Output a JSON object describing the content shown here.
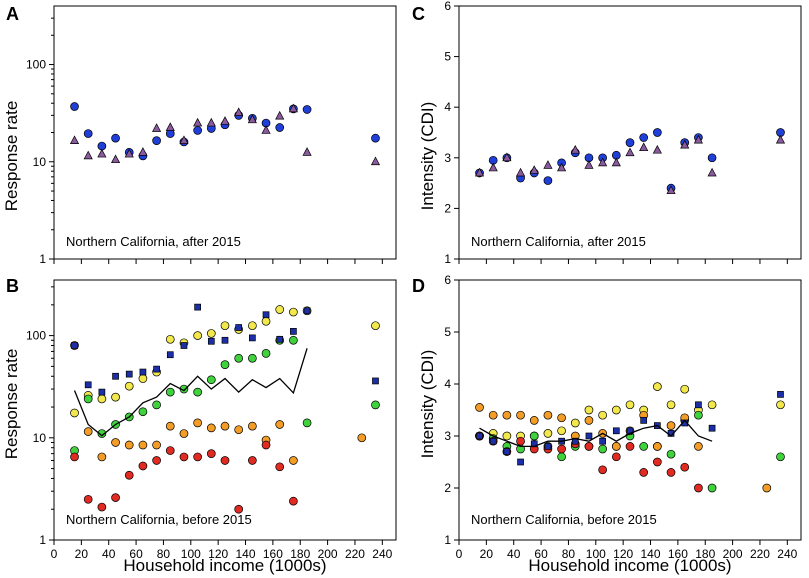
{
  "figure": {
    "x_axis_label": "Household income (1000s)"
  },
  "chart_data": [
    {
      "id": "A",
      "type": "scatter",
      "panel_label": "A",
      "annotation": "Northern California, after 2015",
      "ylabel": "Response rate",
      "yscale": "log",
      "ylim": [
        1,
        400
      ],
      "xlim": [
        0,
        250
      ],
      "xticks": [
        0,
        20,
        40,
        60,
        80,
        100,
        120,
        140,
        160,
        180,
        200,
        220,
        240
      ],
      "show_xtick_labels": false,
      "yticks": [
        1,
        10,
        100
      ],
      "ytick_labels": [
        "1",
        "10",
        "100"
      ],
      "series": [
        {
          "name": "circles",
          "marker": "circle",
          "color": "#1f3fd8",
          "x": [
            15,
            25,
            35,
            45,
            55,
            65,
            75,
            85,
            95,
            105,
            115,
            125,
            135,
            145,
            155,
            165,
            175,
            185,
            235
          ],
          "y": [
            37,
            19.5,
            14.5,
            17.5,
            12.5,
            11.5,
            16.5,
            19.5,
            16,
            21,
            22,
            24,
            30,
            28,
            25,
            22.5,
            35,
            34.5,
            17.5
          ]
        },
        {
          "name": "triangles",
          "marker": "triangle",
          "color": "#8b5a9e",
          "x": [
            15,
            25,
            35,
            45,
            55,
            65,
            75,
            85,
            95,
            105,
            115,
            125,
            135,
            145,
            155,
            165,
            175,
            185,
            235
          ],
          "y": [
            16.5,
            11.5,
            12,
            10.5,
            12,
            12.5,
            22,
            22.5,
            16.5,
            25,
            25,
            26,
            32,
            27,
            21,
            29.5,
            35,
            12.5,
            10
          ]
        }
      ]
    },
    {
      "id": "C",
      "type": "scatter",
      "panel_label": "C",
      "annotation": "Northern California, after 2015",
      "ylabel": "Intensity (CDI)",
      "yscale": "linear",
      "ylim": [
        1,
        6
      ],
      "xlim": [
        0,
        250
      ],
      "xticks": [
        0,
        20,
        40,
        60,
        80,
        100,
        120,
        140,
        160,
        180,
        200,
        220,
        240
      ],
      "show_xtick_labels": false,
      "yticks": [
        1,
        2,
        3,
        4,
        5,
        6
      ],
      "ytick_labels": [
        "1",
        "2",
        "3",
        "4",
        "5",
        "6"
      ],
      "series": [
        {
          "name": "circles",
          "marker": "circle",
          "color": "#1f3fd8",
          "x": [
            15,
            25,
            35,
            45,
            55,
            65,
            75,
            85,
            95,
            105,
            115,
            125,
            135,
            145,
            155,
            165,
            175,
            185,
            235
          ],
          "y": [
            2.7,
            2.95,
            3.0,
            2.6,
            2.7,
            2.55,
            2.9,
            3.1,
            3.0,
            3.0,
            3.05,
            3.3,
            3.4,
            3.5,
            2.4,
            3.3,
            3.4,
            3.0,
            3.5
          ]
        },
        {
          "name": "triangles",
          "marker": "triangle",
          "color": "#8b5a9e",
          "x": [
            15,
            25,
            35,
            45,
            55,
            65,
            75,
            85,
            95,
            105,
            115,
            125,
            135,
            145,
            155,
            165,
            175,
            185,
            235
          ],
          "y": [
            2.7,
            2.8,
            3.0,
            2.7,
            2.75,
            2.85,
            2.8,
            3.15,
            2.85,
            2.9,
            2.9,
            3.1,
            3.2,
            3.15,
            2.35,
            3.25,
            3.35,
            2.7,
            3.35
          ]
        }
      ]
    },
    {
      "id": "B",
      "type": "scatter",
      "panel_label": "B",
      "annotation": "Northern California, before 2015",
      "ylabel": "Response rate",
      "yscale": "log",
      "ylim": [
        1,
        350
      ],
      "xlim": [
        0,
        250
      ],
      "xticks": [
        0,
        20,
        40,
        60,
        80,
        100,
        120,
        140,
        160,
        180,
        200,
        220,
        240
      ],
      "show_xtick_labels": true,
      "yticks": [
        1,
        10,
        100
      ],
      "ytick_labels": [
        "1",
        "10",
        "100"
      ],
      "series": [
        {
          "name": "yellow circles",
          "marker": "circle",
          "color": "#f2e84b",
          "x": [
            15,
            25,
            35,
            45,
            55,
            65,
            75,
            85,
            95,
            105,
            115,
            125,
            135,
            145,
            155,
            165,
            175,
            185,
            235
          ],
          "y": [
            17.5,
            26,
            24,
            25,
            32,
            38,
            44,
            92,
            85,
            100,
            105,
            125,
            115,
            125,
            138,
            180,
            170,
            175,
            125
          ]
        },
        {
          "name": "green circles",
          "marker": "circle",
          "color": "#3fd23c",
          "x": [
            15,
            25,
            35,
            45,
            55,
            65,
            75,
            85,
            95,
            105,
            115,
            125,
            135,
            145,
            155,
            165,
            175,
            185,
            235
          ],
          "y": [
            7.5,
            24,
            11,
            13.5,
            16,
            18,
            21,
            28,
            30,
            28,
            37,
            52,
            60,
            60,
            67,
            90,
            90,
            14,
            21
          ]
        },
        {
          "name": "orange circles",
          "marker": "circle",
          "color": "#f39c26",
          "x": [
            15,
            25,
            35,
            45,
            55,
            65,
            75,
            85,
            95,
            105,
            115,
            125,
            135,
            145,
            155,
            165,
            175,
            225
          ],
          "y": [
            80,
            11.5,
            6.5,
            9,
            8.5,
            8.5,
            8.5,
            13,
            11,
            14,
            12.5,
            13,
            12,
            13,
            9.5,
            13.5,
            6,
            10
          ]
        },
        {
          "name": "red circles",
          "marker": "circle",
          "color": "#e02a22",
          "x": [
            15,
            25,
            35,
            45,
            55,
            65,
            75,
            85,
            95,
            105,
            115,
            125,
            135,
            145,
            155,
            165,
            175
          ],
          "y": [
            6.5,
            2.5,
            2.1,
            2.6,
            4.3,
            5.3,
            6,
            7.5,
            6.5,
            6.5,
            7,
            6,
            2,
            6,
            8.5,
            5.2,
            2.4
          ]
        },
        {
          "name": "blue squares",
          "marker": "square",
          "color": "#1c2fa8",
          "x": [
            15,
            25,
            35,
            45,
            55,
            65,
            75,
            85,
            95,
            105,
            115,
            125,
            135,
            145,
            155,
            165,
            175,
            185,
            235
          ],
          "y": [
            80,
            33,
            28,
            40,
            42,
            44,
            47,
            65,
            80,
            190,
            88,
            90,
            120,
            95,
            160,
            92,
            110,
            175,
            36
          ]
        },
        {
          "name": "line",
          "marker": "line",
          "color": "#000000",
          "x": [
            15,
            25,
            35,
            45,
            55,
            65,
            75,
            85,
            95,
            105,
            115,
            125,
            135,
            145,
            155,
            165,
            175,
            185
          ],
          "y": [
            29,
            13.5,
            10.5,
            13.5,
            16,
            22,
            25,
            34,
            29,
            40,
            30,
            38,
            28,
            37,
            31,
            38,
            27.5,
            75
          ]
        }
      ]
    },
    {
      "id": "D",
      "type": "scatter",
      "panel_label": "D",
      "annotation": "Northern California, before 2015",
      "ylabel": "Intensity (CDI)",
      "yscale": "linear",
      "ylim": [
        1,
        6
      ],
      "xlim": [
        0,
        250
      ],
      "xticks": [
        0,
        20,
        40,
        60,
        80,
        100,
        120,
        140,
        160,
        180,
        200,
        220,
        240
      ],
      "show_xtick_labels": true,
      "yticks": [
        1,
        2,
        3,
        4,
        5,
        6
      ],
      "ytick_labels": [
        "1",
        "2",
        "3",
        "4",
        "5",
        "6"
      ],
      "series": [
        {
          "name": "yellow circles",
          "marker": "circle",
          "color": "#f2e84b",
          "x": [
            15,
            25,
            35,
            45,
            55,
            65,
            75,
            85,
            95,
            105,
            115,
            125,
            135,
            145,
            155,
            165,
            175,
            185,
            235
          ],
          "y": [
            3.0,
            3.05,
            3.0,
            3.0,
            3.0,
            3.05,
            3.1,
            3.25,
            3.5,
            3.4,
            3.5,
            3.6,
            3.5,
            3.95,
            3.6,
            3.9,
            3.5,
            3.6,
            3.6
          ]
        },
        {
          "name": "green circles",
          "marker": "circle",
          "color": "#3fd23c",
          "x": [
            15,
            25,
            35,
            45,
            55,
            65,
            75,
            85,
            95,
            105,
            115,
            125,
            135,
            145,
            155,
            165,
            175,
            185,
            235
          ],
          "y": [
            3.0,
            2.95,
            2.8,
            2.75,
            3.0,
            2.8,
            2.6,
            2.8,
            2.8,
            2.75,
            2.8,
            3.0,
            2.8,
            2.8,
            2.65,
            3.3,
            3.4,
            2.0,
            2.6
          ]
        },
        {
          "name": "orange circles",
          "marker": "circle",
          "color": "#f39c26",
          "x": [
            15,
            25,
            35,
            45,
            55,
            65,
            75,
            85,
            95,
            105,
            115,
            125,
            135,
            145,
            155,
            165,
            175,
            225
          ],
          "y": [
            3.55,
            3.4,
            3.4,
            3.4,
            3.3,
            3.4,
            3.35,
            3.0,
            3.3,
            3.05,
            2.8,
            3.1,
            3.4,
            2.8,
            3.2,
            3.35,
            2.8,
            2.0
          ]
        },
        {
          "name": "red circles",
          "marker": "circle",
          "color": "#e02a22",
          "x": [
            15,
            25,
            35,
            45,
            55,
            65,
            75,
            85,
            95,
            105,
            115,
            125,
            135,
            145,
            155,
            165,
            175
          ],
          "y": [
            3.0,
            2.9,
            2.7,
            2.9,
            2.75,
            2.75,
            2.75,
            2.85,
            2.8,
            2.35,
            2.6,
            2.8,
            2.3,
            2.5,
            2.3,
            2.4,
            2.0
          ]
        },
        {
          "name": "blue squares",
          "marker": "square",
          "color": "#1c2fa8",
          "x": [
            15,
            25,
            35,
            45,
            55,
            65,
            75,
            85,
            95,
            105,
            115,
            125,
            135,
            145,
            155,
            165,
            175,
            185,
            235
          ],
          "y": [
            3.0,
            2.9,
            2.7,
            2.5,
            2.85,
            2.8,
            2.9,
            2.9,
            3.0,
            2.9,
            3.1,
            3.1,
            3.3,
            3.2,
            3.05,
            3.25,
            3.6,
            3.15,
            3.8
          ]
        },
        {
          "name": "line",
          "marker": "line",
          "color": "#000000",
          "x": [
            15,
            25,
            35,
            45,
            55,
            65,
            75,
            85,
            95,
            105,
            115,
            125,
            135,
            145,
            155,
            165,
            175,
            185
          ],
          "y": [
            3.15,
            3.0,
            2.9,
            2.8,
            2.8,
            2.9,
            2.9,
            2.95,
            2.9,
            3.05,
            2.9,
            3.05,
            3.15,
            3.2,
            3.0,
            3.3,
            3.0,
            2.9
          ]
        }
      ]
    }
  ]
}
